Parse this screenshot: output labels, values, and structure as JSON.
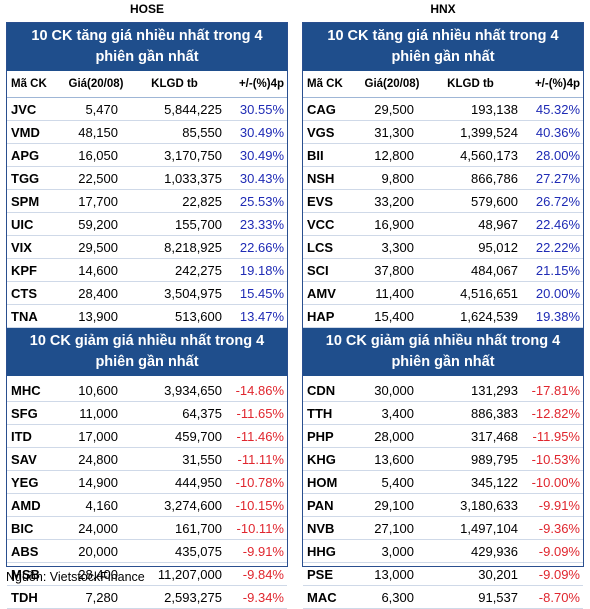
{
  "source": "Nguồn: VietstockFinance",
  "hose": {
    "title": "HOSE",
    "gain_title": "10 CK tăng giá nhiều nhất trong 4 phiên gần nhất",
    "loss_title": "10 CK giảm giá nhiều nhất trong 4 phiên gần nhất",
    "headers": [
      "Mã CK",
      "Giá(20/08)",
      "KLGD tb",
      "+/-(%)4p"
    ],
    "gainers": [
      [
        "JVC",
        "5,470",
        "5,844,225",
        "30.55%"
      ],
      [
        "VMD",
        "48,150",
        "85,550",
        "30.49%"
      ],
      [
        "APG",
        "16,050",
        "3,170,750",
        "30.49%"
      ],
      [
        "TGG",
        "22,500",
        "1,033,375",
        "30.43%"
      ],
      [
        "SPM",
        "17,700",
        "22,825",
        "25.53%"
      ],
      [
        "UIC",
        "59,200",
        "155,700",
        "23.33%"
      ],
      [
        "VIX",
        "29,500",
        "8,218,925",
        "22.66%"
      ],
      [
        "KPF",
        "14,600",
        "242,275",
        "19.18%"
      ],
      [
        "CTS",
        "28,400",
        "3,504,975",
        "15.45%"
      ],
      [
        "TNA",
        "13,900",
        "513,600",
        "13.47%"
      ]
    ],
    "losers": [
      [
        "MHC",
        "10,600",
        "3,934,650",
        "-14.86%"
      ],
      [
        "SFG",
        "11,000",
        "64,375",
        "-11.65%"
      ],
      [
        "ITD",
        "17,000",
        "459,700",
        "-11.46%"
      ],
      [
        "SAV",
        "24,800",
        "31,550",
        "-11.11%"
      ],
      [
        "YEG",
        "14,900",
        "444,950",
        "-10.78%"
      ],
      [
        "AMD",
        "4,160",
        "3,274,600",
        "-10.15%"
      ],
      [
        "BIC",
        "24,000",
        "161,700",
        "-10.11%"
      ],
      [
        "ABS",
        "20,000",
        "435,075",
        "-9.91%"
      ],
      [
        "MSB",
        "28,400",
        "11,207,000",
        "-9.84%"
      ],
      [
        "TDH",
        "7,280",
        "2,593,275",
        "-9.34%"
      ]
    ]
  },
  "hnx": {
    "title": "HNX",
    "gain_title": "10 CK tăng giá nhiều nhất trong 4 phiên gần nhất",
    "loss_title": "10 CK giảm giá nhiều nhất trong 4 phiên gần nhất",
    "headers": [
      "Mã CK",
      "Giá(20/08)",
      "KLGD tb",
      "+/-(%)4p"
    ],
    "gainers": [
      [
        "CAG",
        "29,500",
        "193,138",
        "45.32%"
      ],
      [
        "VGS",
        "31,300",
        "1,399,524",
        "40.36%"
      ],
      [
        "BII",
        "12,800",
        "4,560,173",
        "28.00%"
      ],
      [
        "NSH",
        "9,800",
        "866,786",
        "27.27%"
      ],
      [
        "EVS",
        "33,200",
        "579,600",
        "26.72%"
      ],
      [
        "VCC",
        "16,900",
        "48,967",
        "22.46%"
      ],
      [
        "LCS",
        "3,300",
        "95,012",
        "22.22%"
      ],
      [
        "SCI",
        "37,800",
        "484,067",
        "21.15%"
      ],
      [
        "AMV",
        "11,400",
        "4,516,651",
        "20.00%"
      ],
      [
        "HAP",
        "15,400",
        "1,624,539",
        "19.38%"
      ]
    ],
    "losers": [
      [
        "CDN",
        "30,000",
        "131,293",
        "-17.81%"
      ],
      [
        "TTH",
        "3,400",
        "886,383",
        "-12.82%"
      ],
      [
        "PHP",
        "28,000",
        "317,468",
        "-11.95%"
      ],
      [
        "KHG",
        "13,600",
        "989,795",
        "-10.53%"
      ],
      [
        "HOM",
        "5,400",
        "345,122",
        "-10.00%"
      ],
      [
        "PAN",
        "29,100",
        "3,180,633",
        "-9.91%"
      ],
      [
        "NVB",
        "27,100",
        "1,497,104",
        "-9.36%"
      ],
      [
        "HHG",
        "3,000",
        "429,936",
        "-9.09%"
      ],
      [
        "PSE",
        "13,000",
        "30,201",
        "-9.09%"
      ],
      [
        "MAC",
        "6,300",
        "91,537",
        "-8.70%"
      ]
    ]
  },
  "colors": {
    "header_bg": "#1f4e8c",
    "positive": "#1f2bb5",
    "negative": "#e0262e"
  }
}
